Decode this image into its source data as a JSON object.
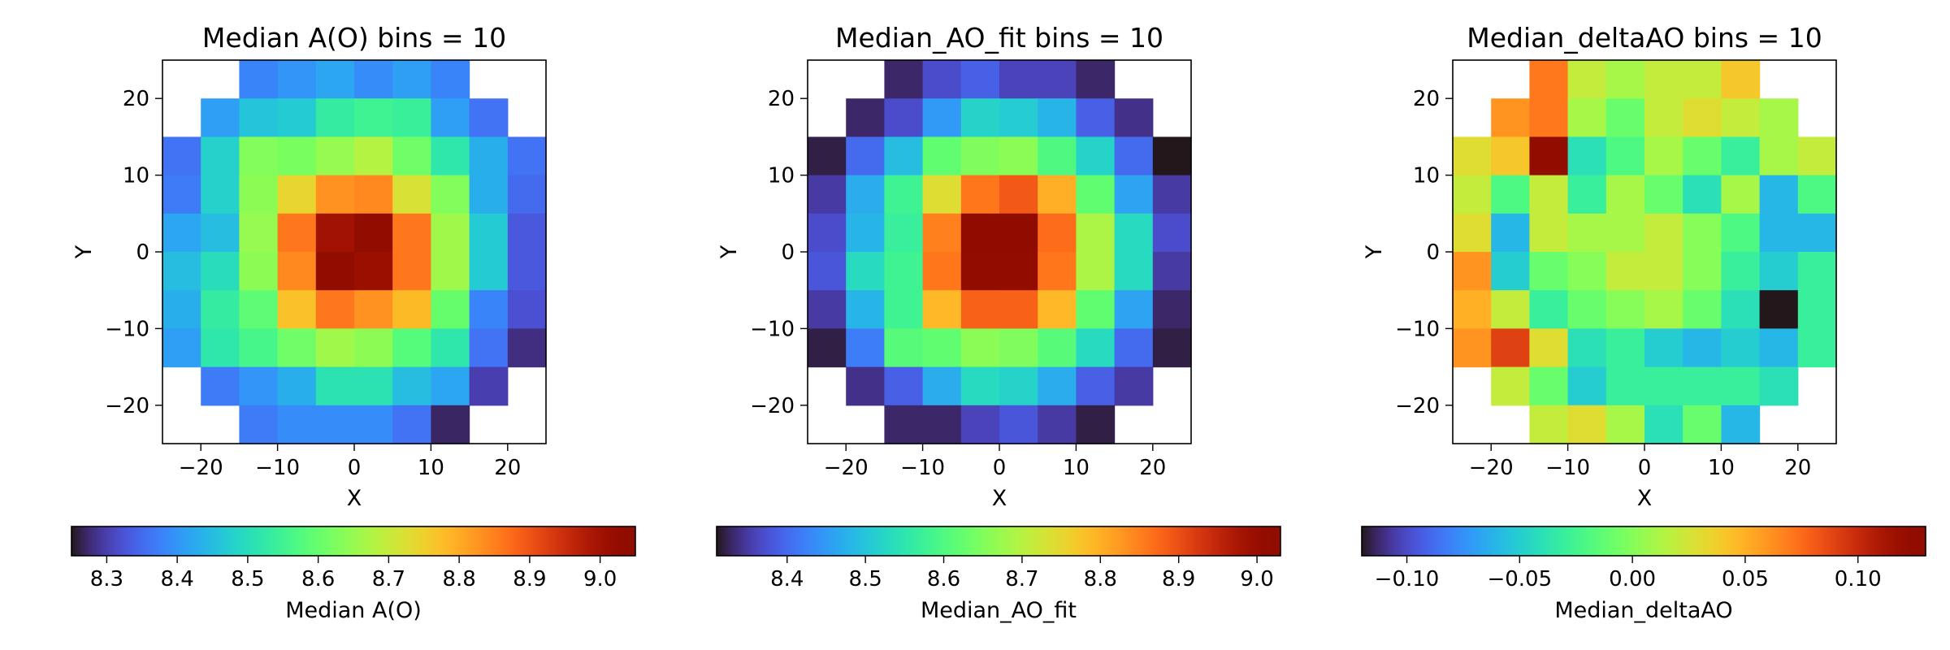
{
  "chart_data": [
    {
      "type": "heatmap",
      "title": "Median A(O) bins = 10",
      "xlabel": "X",
      "ylabel": "Y",
      "xlim": [
        -25,
        25
      ],
      "ylim": [
        -25,
        25
      ],
      "xticks": [
        "−20",
        "−10",
        "0",
        "10",
        "20"
      ],
      "yticks": [
        "20",
        "10",
        "0",
        "−10",
        "−20"
      ],
      "colormap": "turbo",
      "colorbar": {
        "label": "Median A(O)",
        "range": [
          8.25,
          9.05
        ],
        "ticks": [
          "8.3",
          "8.4",
          "8.5",
          "8.6",
          "8.7",
          "8.8",
          "8.9",
          "9.0"
        ],
        "tick_values": [
          8.3,
          8.4,
          8.5,
          8.6,
          8.7,
          8.8,
          8.9,
          9.0
        ]
      },
      "x_bin_edges": [
        -25,
        -20,
        -15,
        -10,
        -5,
        0,
        5,
        10,
        15,
        20,
        25
      ],
      "y_bin_edges": [
        25,
        20,
        15,
        10,
        5,
        0,
        -5,
        -10,
        -15,
        -20,
        -25
      ],
      "grid": [
        [
          null,
          null,
          8.38,
          8.4,
          8.42,
          8.39,
          8.41,
          8.38,
          null,
          null
        ],
        [
          null,
          8.41,
          8.46,
          8.47,
          8.53,
          8.55,
          8.54,
          8.41,
          8.36,
          null
        ],
        [
          8.36,
          8.48,
          8.63,
          8.62,
          8.65,
          8.68,
          8.61,
          8.52,
          8.43,
          8.36
        ],
        [
          8.37,
          8.48,
          8.64,
          8.74,
          8.83,
          8.84,
          8.72,
          8.63,
          8.43,
          8.35
        ],
        [
          8.42,
          8.45,
          8.65,
          8.86,
          9.0,
          9.05,
          8.86,
          8.66,
          8.47,
          8.33
        ],
        [
          8.45,
          8.5,
          8.64,
          8.84,
          9.05,
          9.01,
          8.86,
          8.66,
          8.47,
          8.33
        ],
        [
          8.43,
          8.53,
          8.59,
          8.77,
          8.86,
          8.83,
          8.78,
          8.6,
          8.38,
          8.32
        ],
        [
          8.41,
          8.52,
          8.56,
          8.61,
          8.66,
          8.64,
          8.58,
          8.52,
          8.36,
          8.28
        ],
        [
          null,
          8.37,
          8.4,
          8.43,
          8.51,
          8.51,
          8.45,
          8.42,
          8.3,
          null
        ],
        [
          null,
          null,
          8.37,
          8.39,
          8.39,
          8.39,
          8.36,
          8.27,
          null,
          null
        ]
      ]
    },
    {
      "type": "heatmap",
      "title": "Median_AO_fit bins = 10",
      "xlabel": "X",
      "ylabel": "Y",
      "xlim": [
        -25,
        25
      ],
      "ylim": [
        -25,
        25
      ],
      "xticks": [
        "−20",
        "−10",
        "0",
        "10",
        "20"
      ],
      "yticks": [
        "20",
        "10",
        "0",
        "−10",
        "−20"
      ],
      "colormap": "turbo",
      "colorbar": {
        "label": "Median_AO_fit",
        "range": [
          8.31,
          9.03
        ],
        "ticks": [
          "8.4",
          "8.5",
          "8.6",
          "8.7",
          "8.8",
          "8.9",
          "9.0"
        ],
        "tick_values": [
          8.4,
          8.5,
          8.6,
          8.7,
          8.8,
          8.9,
          9.0
        ]
      },
      "x_bin_edges": [
        -25,
        -20,
        -15,
        -10,
        -5,
        0,
        5,
        10,
        15,
        20,
        25
      ],
      "y_bin_edges": [
        25,
        20,
        15,
        10,
        5,
        0,
        -5,
        -10,
        -15,
        -20,
        -25
      ],
      "grid": [
        [
          null,
          null,
          8.33,
          8.37,
          8.39,
          8.36,
          8.36,
          8.33,
          null,
          null
        ],
        [
          null,
          8.33,
          8.37,
          8.45,
          8.52,
          8.51,
          8.48,
          8.39,
          8.34,
          null
        ],
        [
          8.32,
          8.4,
          8.49,
          8.62,
          8.65,
          8.66,
          8.6,
          8.52,
          8.4,
          8.31
        ],
        [
          8.35,
          8.47,
          8.58,
          8.74,
          8.86,
          8.89,
          8.8,
          8.62,
          8.46,
          8.35
        ],
        [
          8.37,
          8.48,
          8.57,
          8.85,
          9.02,
          9.02,
          8.87,
          8.69,
          8.53,
          8.37
        ],
        [
          8.38,
          8.53,
          8.58,
          8.86,
          9.03,
          9.01,
          8.86,
          8.69,
          8.53,
          8.35
        ],
        [
          8.35,
          8.48,
          8.58,
          8.79,
          8.88,
          8.88,
          8.79,
          8.62,
          8.46,
          8.33
        ],
        [
          8.32,
          8.42,
          8.61,
          8.62,
          8.66,
          8.65,
          8.61,
          8.53,
          8.4,
          8.32
        ],
        [
          null,
          8.34,
          8.39,
          8.47,
          8.53,
          8.52,
          8.47,
          8.39,
          8.35,
          null
        ],
        [
          null,
          null,
          8.33,
          8.33,
          8.36,
          8.38,
          8.35,
          8.32,
          null,
          null
        ]
      ]
    },
    {
      "type": "heatmap",
      "title": "Median_deltaAO bins = 10",
      "xlabel": "X",
      "ylabel": "Y",
      "xlim": [
        -25,
        25
      ],
      "ylim": [
        -25,
        25
      ],
      "xticks": [
        "−20",
        "−10",
        "0",
        "10",
        "20"
      ],
      "yticks": [
        "20",
        "10",
        "0",
        "−10",
        "−20"
      ],
      "colormap": "turbo",
      "colorbar": {
        "label": "Median_deltaAO",
        "range": [
          -0.12,
          0.13
        ],
        "ticks": [
          "−0.10",
          "−0.05",
          "0.00",
          "0.05",
          "0.10"
        ],
        "tick_values": [
          -0.1,
          -0.05,
          0.0,
          0.05,
          0.1
        ]
      },
      "x_bin_edges": [
        -25,
        -20,
        -15,
        -10,
        -5,
        0,
        5,
        10,
        15,
        20,
        25
      ],
      "y_bin_edges": [
        25,
        20,
        15,
        10,
        5,
        0,
        -5,
        -10,
        -15,
        -20,
        -25
      ],
      "grid": [
        [
          null,
          null,
          0.07,
          0.02,
          0.01,
          0.02,
          0.02,
          0.04,
          null,
          null
        ],
        [
          null,
          0.06,
          0.07,
          0.01,
          -0.01,
          0.02,
          0.03,
          0.02,
          0.01,
          null
        ],
        [
          0.03,
          0.04,
          0.13,
          -0.04,
          -0.02,
          0.01,
          -0.01,
          -0.03,
          0.01,
          0.02
        ],
        [
          0.02,
          -0.02,
          0.02,
          -0.03,
          0.01,
          -0.01,
          -0.04,
          0.01,
          -0.06,
          -0.02
        ],
        [
          0.03,
          -0.06,
          0.02,
          0.01,
          0.01,
          0.02,
          0.0,
          -0.02,
          -0.06,
          -0.06
        ],
        [
          0.06,
          -0.05,
          -0.01,
          0.0,
          0.02,
          0.02,
          0.0,
          -0.03,
          -0.05,
          -0.03
        ],
        [
          0.05,
          0.02,
          -0.03,
          -0.01,
          0.0,
          0.01,
          -0.01,
          -0.04,
          -0.12,
          -0.03
        ],
        [
          0.06,
          0.09,
          0.03,
          -0.04,
          -0.03,
          -0.05,
          -0.06,
          -0.05,
          -0.06,
          -0.03
        ],
        [
          null,
          0.02,
          -0.01,
          -0.05,
          -0.03,
          -0.03,
          -0.03,
          -0.03,
          -0.04,
          null
        ],
        [
          null,
          null,
          0.02,
          0.03,
          0.01,
          -0.04,
          -0.01,
          -0.06,
          null,
          null
        ]
      ]
    }
  ]
}
